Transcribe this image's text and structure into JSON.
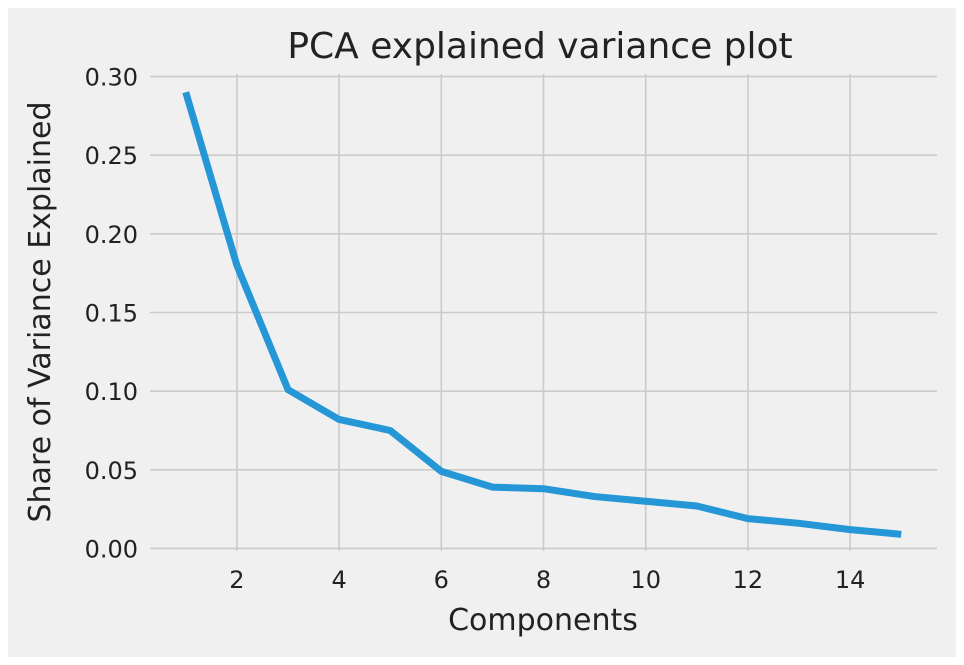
{
  "chart_data": {
    "type": "line",
    "title": "PCA explained variance plot",
    "xlabel": "Components",
    "ylabel": "Share of Variance Explained",
    "x": [
      1,
      2,
      3,
      4,
      5,
      6,
      7,
      8,
      9,
      10,
      11,
      12,
      13,
      14,
      15
    ],
    "series": [
      {
        "values": [
          0.29,
          0.18,
          0.101,
          0.082,
          0.075,
          0.049,
          0.039,
          0.038,
          0.033,
          0.03,
          0.027,
          0.019,
          0.016,
          0.012,
          0.009
        ],
        "color": "#2596d6"
      }
    ],
    "xlim": [
      0.3,
      15.7
    ],
    "ylim": [
      -0.0016,
      0.3016
    ],
    "xticks": [
      2,
      4,
      6,
      8,
      10,
      12,
      14
    ],
    "xtick_labels": [
      "2",
      "4",
      "6",
      "8",
      "10",
      "12",
      "14"
    ],
    "yticks": [
      0.0,
      0.05,
      0.1,
      0.15,
      0.2,
      0.25,
      0.3
    ],
    "ytick_labels": [
      "0.00",
      "0.05",
      "0.10",
      "0.15",
      "0.20",
      "0.25",
      "0.30"
    ],
    "grid": true,
    "background_color": "#f0f0f0",
    "grid_color": "#cbcbcb",
    "text_color": "#222222"
  }
}
